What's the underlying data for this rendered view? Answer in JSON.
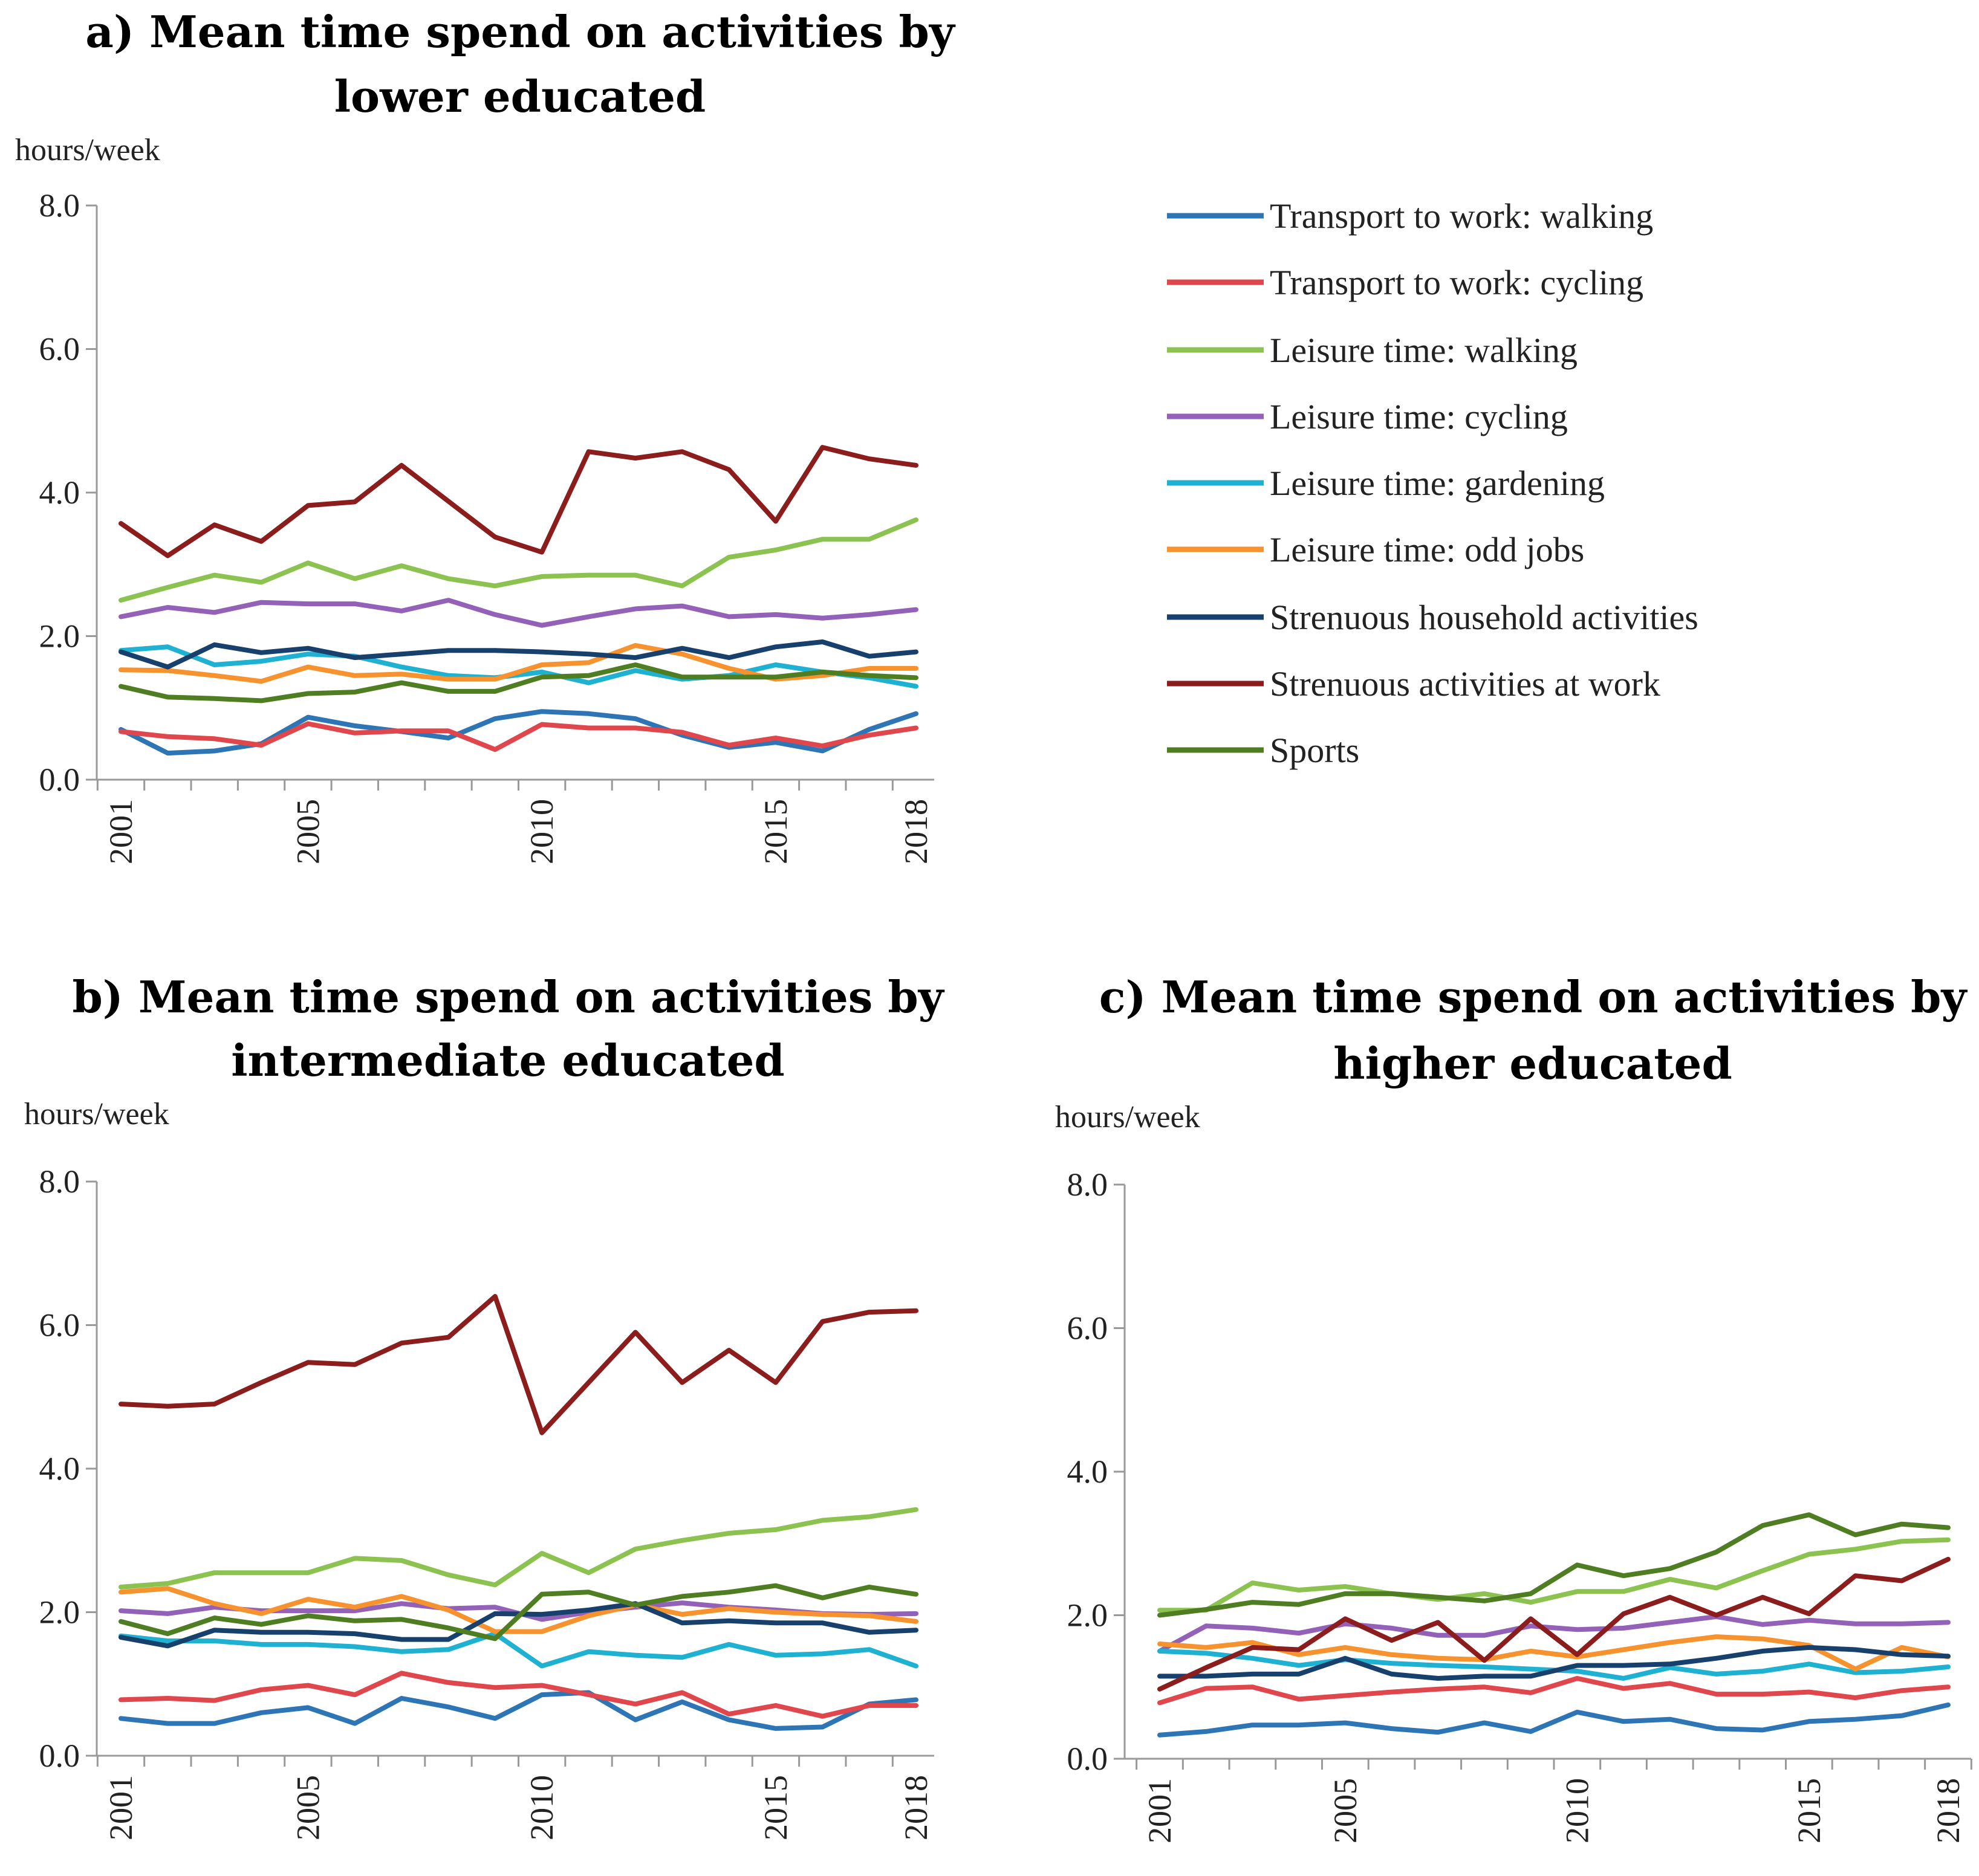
{
  "colors": {
    "transport_walking": "#2e75b6",
    "transport_cycling": "#e0474c",
    "leisure_walking": "#8cc350",
    "leisure_cycling": "#9361b8",
    "leisure_gardening": "#1fb1d1",
    "leisure_oddjobs": "#f7932f",
    "household": "#17406d",
    "work": "#8b1d1d",
    "sports": "#4f7d22"
  },
  "legend": [
    {
      "label": "Transport to work: walking",
      "color": "#2e75b6"
    },
    {
      "label": "Transport to work: cycling",
      "color": "#e0474c"
    },
    {
      "label": "Leisure time: walking",
      "color": "#8cc350"
    },
    {
      "label": "Leisure time: cycling",
      "color": "#9361b8"
    },
    {
      "label": "Leisure time: gardening",
      "color": "#1fb1d1"
    },
    {
      "label": "Leisure time: odd jobs",
      "color": "#f7932f"
    },
    {
      "label": "Strenuous household activities",
      "color": "#17406d"
    },
    {
      "label": "Strenuous activities at work",
      "color": "#8b1d1d"
    },
    {
      "label": "Sports",
      "color": "#4f7d22"
    }
  ],
  "chart_data": [
    {
      "id": "a",
      "type": "line",
      "title_line1": "a) Mean time spend on activities by",
      "title_line2": "lower educated",
      "ylabel": "hours/week",
      "ylim": [
        0,
        8
      ],
      "yticks": [
        "0.0",
        "2.0",
        "4.0",
        "6.0",
        "8.0"
      ],
      "x": [
        2001,
        2002,
        2003,
        2004,
        2005,
        2006,
        2007,
        2008,
        2009,
        2010,
        2011,
        2012,
        2013,
        2014,
        2015,
        2016,
        2017,
        2018
      ],
      "xticks": [
        "2001",
        "2005",
        "2010",
        "2015",
        "2018"
      ],
      "series": [
        {
          "name": "Transport to work: walking",
          "color": "#2e75b6",
          "values": [
            0.7,
            0.37,
            0.4,
            0.5,
            0.87,
            0.75,
            0.67,
            0.58,
            0.85,
            0.95,
            0.92,
            0.85,
            0.62,
            0.45,
            0.52,
            0.4,
            0.7,
            0.92
          ]
        },
        {
          "name": "Transport to work: cycling",
          "color": "#e0474c",
          "values": [
            0.67,
            0.6,
            0.57,
            0.48,
            0.78,
            0.65,
            0.68,
            0.68,
            0.42,
            0.77,
            0.72,
            0.72,
            0.66,
            0.48,
            0.58,
            0.47,
            0.62,
            0.72
          ]
        },
        {
          "name": "Leisure time: walking",
          "color": "#8cc350",
          "values": [
            2.5,
            2.68,
            2.85,
            2.75,
            3.02,
            2.8,
            2.98,
            2.8,
            2.7,
            2.83,
            2.85,
            2.85,
            2.7,
            3.1,
            3.2,
            3.35,
            3.35,
            3.62
          ]
        },
        {
          "name": "Leisure time: cycling",
          "color": "#9361b8",
          "values": [
            2.27,
            2.4,
            2.33,
            2.47,
            2.45,
            2.45,
            2.35,
            2.5,
            2.3,
            2.15,
            2.27,
            2.38,
            2.42,
            2.27,
            2.3,
            2.25,
            2.3,
            2.37
          ]
        },
        {
          "name": "Leisure time: gardening",
          "color": "#1fb1d1",
          "values": [
            1.8,
            1.85,
            1.6,
            1.65,
            1.75,
            1.72,
            1.57,
            1.45,
            1.42,
            1.5,
            1.35,
            1.52,
            1.4,
            1.45,
            1.6,
            1.5,
            1.42,
            1.3
          ]
        },
        {
          "name": "Leisure time: odd jobs",
          "color": "#f7932f",
          "values": [
            1.53,
            1.52,
            1.45,
            1.37,
            1.57,
            1.45,
            1.47,
            1.4,
            1.4,
            1.6,
            1.63,
            1.87,
            1.75,
            1.55,
            1.4,
            1.45,
            1.55,
            1.55
          ]
        },
        {
          "name": "Strenuous household activities",
          "color": "#17406d",
          "values": [
            1.78,
            1.57,
            1.88,
            1.77,
            1.83,
            1.7,
            1.75,
            1.8,
            1.8,
            1.78,
            1.75,
            1.7,
            1.83,
            1.7,
            1.85,
            1.92,
            1.72,
            1.78
          ]
        },
        {
          "name": "Strenuous activities at work",
          "color": "#8b1d1d",
          "values": [
            3.57,
            3.12,
            3.55,
            3.32,
            3.82,
            3.87,
            4.38,
            3.88,
            3.38,
            3.17,
            4.57,
            4.48,
            4.57,
            4.32,
            3.6,
            4.63,
            4.47,
            4.38
          ]
        },
        {
          "name": "Sports",
          "color": "#4f7d22",
          "values": [
            1.3,
            1.15,
            1.13,
            1.1,
            1.2,
            1.22,
            1.35,
            1.23,
            1.23,
            1.43,
            1.45,
            1.6,
            1.43,
            1.43,
            1.43,
            1.5,
            1.45,
            1.42
          ]
        }
      ]
    },
    {
      "id": "b",
      "type": "line",
      "title_line1": "b) Mean time spend on activities by",
      "title_line2": "intermediate educated",
      "ylabel": "hours/week",
      "ylim": [
        0,
        8
      ],
      "yticks": [
        "0.0",
        "2.0",
        "4.0",
        "6.0",
        "8.0"
      ],
      "x": [
        2001,
        2002,
        2003,
        2004,
        2005,
        2006,
        2007,
        2008,
        2009,
        2010,
        2011,
        2012,
        2013,
        2014,
        2015,
        2016,
        2017,
        2018
      ],
      "xticks": [
        "2001",
        "2005",
        "2010",
        "2015",
        "2018"
      ],
      "series": [
        {
          "name": "Transport to work: walking",
          "color": "#2e75b6",
          "values": [
            0.52,
            0.45,
            0.45,
            0.6,
            0.67,
            0.45,
            0.8,
            0.68,
            0.52,
            0.85,
            0.88,
            0.5,
            0.75,
            0.5,
            0.38,
            0.4,
            0.72,
            0.78
          ]
        },
        {
          "name": "Transport to work: cycling",
          "color": "#e0474c",
          "values": [
            0.78,
            0.8,
            0.77,
            0.92,
            0.98,
            0.85,
            1.15,
            1.02,
            0.95,
            0.98,
            0.85,
            0.72,
            0.88,
            0.58,
            0.7,
            0.55,
            0.7,
            0.7
          ]
        },
        {
          "name": "Leisure time: walking",
          "color": "#8cc350",
          "values": [
            2.35,
            2.4,
            2.55,
            2.55,
            2.55,
            2.75,
            2.72,
            2.52,
            2.38,
            2.82,
            2.55,
            2.88,
            3.0,
            3.1,
            3.15,
            3.28,
            3.33,
            3.43
          ]
        },
        {
          "name": "Leisure time: cycling",
          "color": "#9361b8",
          "values": [
            2.02,
            1.98,
            2.07,
            2.02,
            2.02,
            2.02,
            2.12,
            2.05,
            2.07,
            1.9,
            2.0,
            2.07,
            2.13,
            2.07,
            2.03,
            1.98,
            1.97,
            1.98
          ]
        },
        {
          "name": "Leisure time: gardening",
          "color": "#1fb1d1",
          "values": [
            1.67,
            1.6,
            1.6,
            1.55,
            1.55,
            1.52,
            1.45,
            1.48,
            1.7,
            1.25,
            1.45,
            1.4,
            1.37,
            1.55,
            1.4,
            1.42,
            1.48,
            1.25
          ]
        },
        {
          "name": "Leisure time: odd jobs",
          "color": "#f7932f",
          "values": [
            2.28,
            2.33,
            2.12,
            1.98,
            2.18,
            2.07,
            2.22,
            2.03,
            1.73,
            1.73,
            1.95,
            2.1,
            1.97,
            2.05,
            2.0,
            1.97,
            1.95,
            1.87
          ]
        },
        {
          "name": "Strenuous household activities",
          "color": "#17406d",
          "values": [
            1.65,
            1.53,
            1.75,
            1.72,
            1.72,
            1.7,
            1.62,
            1.62,
            1.98,
            1.97,
            2.03,
            2.12,
            1.85,
            1.88,
            1.85,
            1.85,
            1.72,
            1.75
          ]
        },
        {
          "name": "Strenuous activities at work",
          "color": "#8b1d1d",
          "values": [
            4.9,
            4.87,
            4.9,
            5.2,
            5.48,
            5.45,
            5.75,
            5.83,
            6.4,
            4.5,
            5.2,
            5.9,
            5.2,
            5.65,
            5.2,
            6.05,
            6.18,
            6.2
          ]
        },
        {
          "name": "Sports",
          "color": "#4f7d22",
          "values": [
            1.87,
            1.7,
            1.92,
            1.83,
            1.95,
            1.88,
            1.9,
            1.78,
            1.63,
            2.25,
            2.28,
            2.1,
            2.22,
            2.28,
            2.37,
            2.2,
            2.35,
            2.25
          ]
        }
      ]
    },
    {
      "id": "c",
      "type": "line",
      "title_line1": "c) Mean time spend on activities by",
      "title_line2": "higher educated",
      "ylabel": "hours/week",
      "ylim": [
        0,
        8
      ],
      "yticks": [
        "0.0",
        "2.0",
        "4.0",
        "6.0",
        "8.0"
      ],
      "x": [
        2001,
        2002,
        2003,
        2004,
        2005,
        2006,
        2007,
        2008,
        2009,
        2010,
        2011,
        2012,
        2013,
        2014,
        2015,
        2016,
        2017,
        2018
      ],
      "xticks": [
        "2001",
        "2005",
        "2010",
        "2015",
        "2018"
      ],
      "series": [
        {
          "name": "Transport to work: walking",
          "color": "#2e75b6",
          "values": [
            0.33,
            0.38,
            0.47,
            0.47,
            0.5,
            0.42,
            0.37,
            0.5,
            0.38,
            0.65,
            0.52,
            0.55,
            0.42,
            0.4,
            0.52,
            0.55,
            0.6,
            0.75
          ]
        },
        {
          "name": "Transport to work: cycling",
          "color": "#e0474c",
          "values": [
            0.78,
            0.98,
            1.0,
            0.83,
            0.88,
            0.93,
            0.97,
            1.0,
            0.92,
            1.12,
            0.98,
            1.05,
            0.9,
            0.9,
            0.93,
            0.85,
            0.95,
            1.0
          ]
        },
        {
          "name": "Leisure time: walking",
          "color": "#8cc350",
          "values": [
            2.07,
            2.07,
            2.45,
            2.35,
            2.4,
            2.3,
            2.22,
            2.3,
            2.18,
            2.33,
            2.33,
            2.5,
            2.38,
            2.62,
            2.85,
            2.92,
            3.03,
            3.05
          ]
        },
        {
          "name": "Leisure time: cycling",
          "color": "#9361b8",
          "values": [
            1.5,
            1.85,
            1.82,
            1.75,
            1.88,
            1.82,
            1.72,
            1.72,
            1.85,
            1.8,
            1.82,
            1.9,
            1.98,
            1.87,
            1.93,
            1.88,
            1.88,
            1.9
          ]
        },
        {
          "name": "Leisure time: gardening",
          "color": "#1fb1d1",
          "values": [
            1.5,
            1.47,
            1.4,
            1.3,
            1.38,
            1.33,
            1.3,
            1.28,
            1.25,
            1.22,
            1.12,
            1.27,
            1.18,
            1.22,
            1.32,
            1.2,
            1.22,
            1.28
          ]
        },
        {
          "name": "Leisure time: odd jobs",
          "color": "#f7932f",
          "values": [
            1.6,
            1.55,
            1.62,
            1.45,
            1.55,
            1.45,
            1.4,
            1.38,
            1.5,
            1.42,
            1.52,
            1.62,
            1.7,
            1.67,
            1.58,
            1.25,
            1.55,
            1.42
          ]
        },
        {
          "name": "Strenuous household activities",
          "color": "#17406d",
          "values": [
            1.15,
            1.15,
            1.18,
            1.18,
            1.4,
            1.18,
            1.12,
            1.15,
            1.15,
            1.3,
            1.3,
            1.32,
            1.4,
            1.5,
            1.55,
            1.52,
            1.45,
            1.43
          ]
        },
        {
          "name": "Strenuous activities at work",
          "color": "#8b1d1d",
          "values": [
            0.97,
            1.27,
            1.55,
            1.52,
            1.95,
            1.65,
            1.9,
            1.37,
            1.95,
            1.45,
            2.02,
            2.25,
            2.0,
            2.25,
            2.02,
            2.55,
            2.48,
            2.78
          ]
        },
        {
          "name": "Sports",
          "color": "#4f7d22",
          "values": [
            2.0,
            2.08,
            2.18,
            2.15,
            2.3,
            2.3,
            2.25,
            2.2,
            2.3,
            2.7,
            2.55,
            2.65,
            2.88,
            3.25,
            3.4,
            3.12,
            3.27,
            3.22
          ]
        }
      ]
    }
  ]
}
